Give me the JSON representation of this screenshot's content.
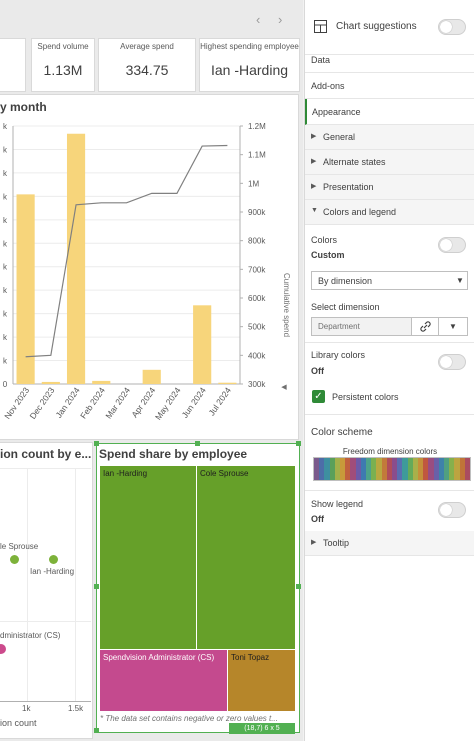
{
  "kpis": [
    {
      "label": "Spend volume",
      "value": "1.13M"
    },
    {
      "label": "Average spend",
      "value": "334.75"
    },
    {
      "label": "Highest spending employee",
      "value": "Ian -Harding"
    }
  ],
  "combo": {
    "title": "y month",
    "left_ticks": [
      "k",
      "k",
      "k",
      "k",
      "k",
      "k",
      "k",
      "k",
      "k",
      "k",
      "k",
      "0"
    ],
    "right_ticks": [
      "1.2M",
      "1.1M",
      "1M",
      "900k",
      "800k",
      "700k",
      "600k",
      "500k",
      "400k",
      "300k"
    ],
    "right_axis_label": "Cumulative spend",
    "x_labels": [
      "Nov 2023",
      "Dec 2023",
      "Jan 2024",
      "Feb 2024",
      "Mar 2024",
      "Apr 2024",
      "May 2024",
      "Jun 2024",
      "Jul 2024"
    ]
  },
  "chart_data": [
    {
      "type": "bar",
      "categories": [
        "Nov 2023",
        "Dec 2023",
        "Jan 2024",
        "Feb 2024",
        "Mar 2024",
        "Apr 2024",
        "May 2024",
        "Jun 2024",
        "Jul 2024"
      ],
      "series": [
        {
          "values": [
            0.735,
            0.008,
            0.97,
            0.012,
            0.0,
            0.055,
            0.0,
            0.305,
            0.005
          ]
        },
        {
          "name": "Cumulative spend",
          "type": "line",
          "values": [
            395000,
            400000,
            925000,
            932000,
            932000,
            965000,
            965000,
            1130000,
            1132000
          ]
        }
      ],
      "y2lim": [
        300000,
        1200000
      ],
      "y2label": "Cumulative spend"
    },
    {
      "type": "scatter",
      "title": "ion count by e...",
      "xlabel": "ion count",
      "x_ticks": [
        "1k",
        "1.5k"
      ],
      "points": [
        {
          "label": "le Sprouse",
          "color": "#7db23a"
        },
        {
          "label": "Ian -Harding",
          "color": "#7db23a"
        },
        {
          "label": "dministrator (CS)",
          "color": "#cc4a8c"
        }
      ]
    },
    {
      "type": "treemap",
      "title": "Spend share by employee",
      "items": [
        {
          "label": "Ian -Harding",
          "color": "#66a029"
        },
        {
          "label": "Cole Sprouse",
          "color": "#66a029"
        },
        {
          "label": "Spendvision Administrator (CS)",
          "color": "#c44a8e"
        },
        {
          "label": "Toni Topaz",
          "color": "#b6862a"
        }
      ]
    }
  ],
  "scatter": {
    "title": "ion count by e...",
    "xlabel": "ion count",
    "x_ticks": [
      "1k",
      "1.5k"
    ],
    "labels": [
      "le Sprouse",
      "Ian -Harding",
      "dministrator (CS)"
    ]
  },
  "treemap": {
    "title": "Spend share by employee",
    "labels": [
      "Ian -Harding",
      "Cole Sprouse",
      "Spendvision Administrator (CS)",
      "Toni Topaz"
    ],
    "footnote": "* The data set contains negative or zero values t...",
    "badge": "(18,7)  6 x 5"
  },
  "props": {
    "chart_suggestions": "Chart suggestions",
    "data": "Data",
    "addons": "Add-ons",
    "appearance": "Appearance",
    "general": "General",
    "alternate_states": "Alternate states",
    "presentation": "Presentation",
    "colors_legend": "Colors and legend",
    "colors_label": "Colors",
    "colors_value": "Custom",
    "by_dimension": "By dimension",
    "select_dimension": "Select dimension",
    "dimension_value": "Department",
    "library_colors": "Library colors",
    "library_colors_value": "Off",
    "persistent_colors": "Persistent colors",
    "color_scheme": "Color scheme",
    "scheme_name": "Freedom dimension colors",
    "show_legend": "Show legend",
    "show_legend_value": "Off",
    "tooltip": "Tooltip"
  },
  "colors": {
    "bar": "#f7d57b",
    "line": "#808080",
    "accent": "#2f8a37",
    "selected": "#52b052"
  }
}
